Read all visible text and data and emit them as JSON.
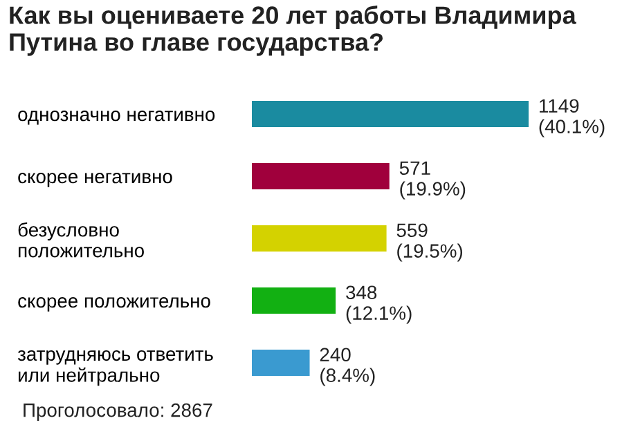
{
  "chart_data": {
    "type": "bar",
    "orientation": "horizontal",
    "title": "Как вы оцениваете 20 лет работы Владимира\nПутина во главе государства?",
    "categories": [
      "однозначно негативно",
      "скорее негативно",
      "безусловно\nположительно",
      "скорее положительно",
      "затрудняюсь ответить\nили нейтрально"
    ],
    "values": [
      1149,
      571,
      559,
      348,
      240
    ],
    "colors": [
      "#1a8ba0",
      "#a0003c",
      "#d4d200",
      "#12b012",
      "#3a9ad0"
    ],
    "value_labels": [
      "1149\n(40.1%)",
      "571\n(19.9%)",
      "559\n(19.5%)",
      "348\n(12.1%)",
      "240\n(8.4%)"
    ],
    "xlim": [
      0,
      1149
    ],
    "annotations": [
      "Проголосовало: 2867"
    ]
  }
}
